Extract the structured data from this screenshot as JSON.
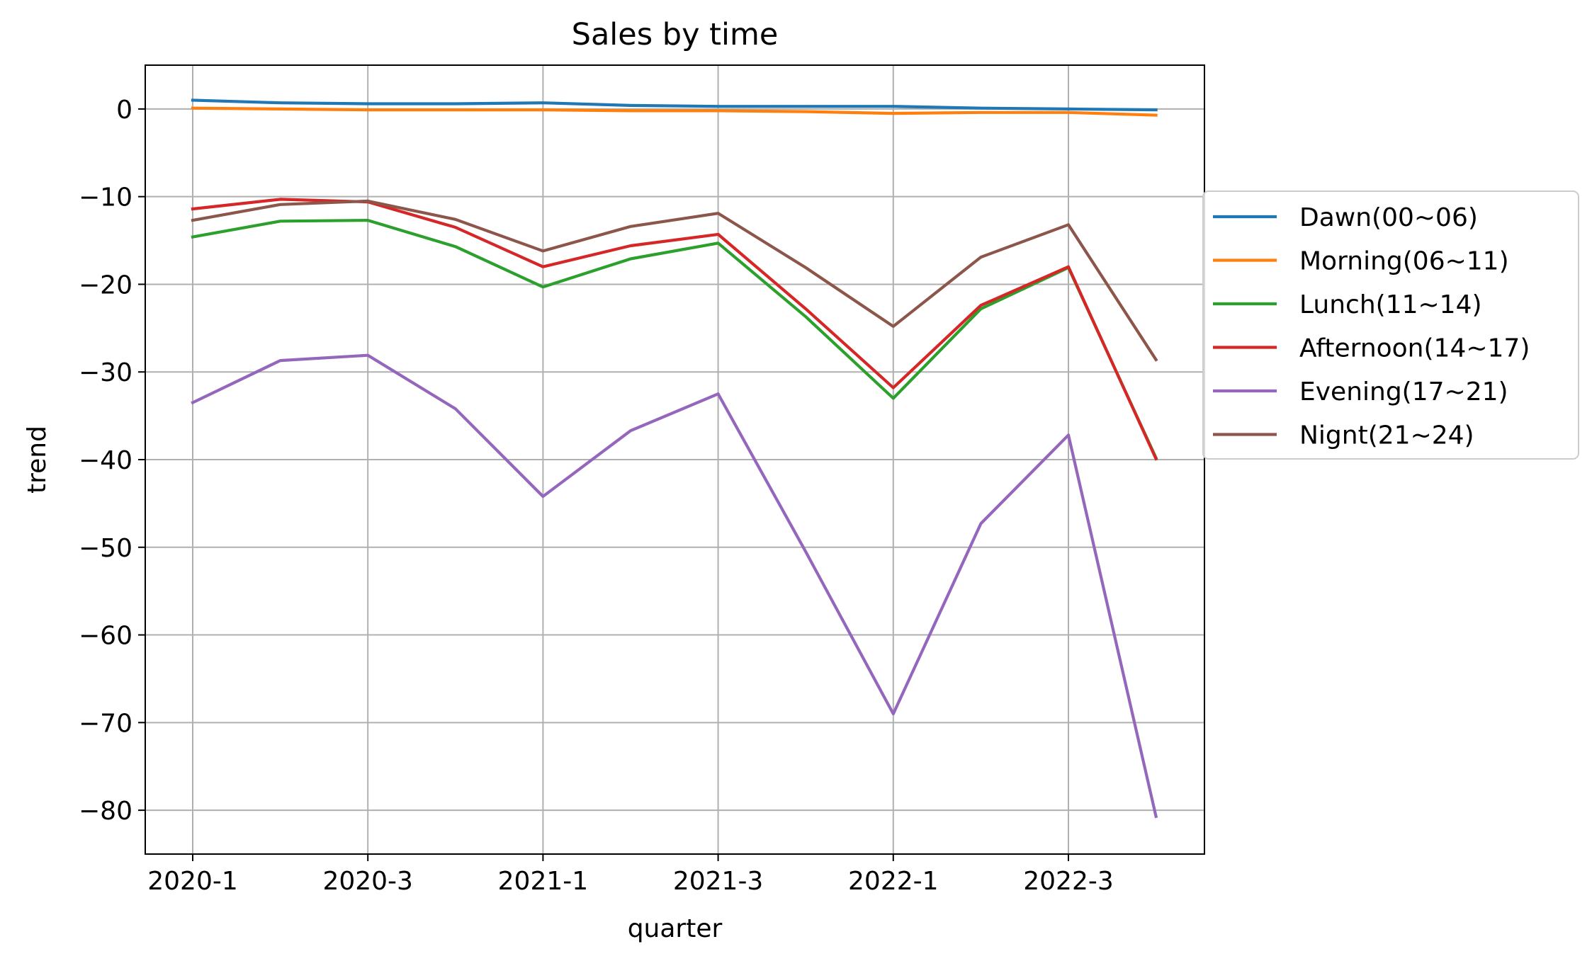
{
  "chart_data": {
    "type": "line",
    "title": "Sales by time",
    "xlabel": "quarter",
    "ylabel": "trend",
    "x": [
      "2020-1",
      "2020-2",
      "2020-3",
      "2020-4",
      "2021-1",
      "2021-2",
      "2021-3",
      "2021-4",
      "2022-1",
      "2022-2",
      "2022-3",
      "2022-4"
    ],
    "x_tick_labels": [
      "2020-1",
      "2020-3",
      "2021-1",
      "2021-3",
      "2022-1",
      "2022-3"
    ],
    "y_ticks": [
      0,
      -10,
      -20,
      -30,
      -40,
      -50,
      -60,
      -70,
      -80
    ],
    "y_tick_labels": [
      "0",
      "−10",
      "−20",
      "−30",
      "−40",
      "−50",
      "−60",
      "−70",
      "−80"
    ],
    "ylim": [
      -85,
      5
    ],
    "grid": true,
    "legend_position": "right, outside plot",
    "series": [
      {
        "name": "Dawn(00~06)",
        "color": "#1f77b4",
        "values": [
          1.0,
          0.7,
          0.6,
          0.6,
          0.7,
          0.4,
          0.3,
          0.3,
          0.3,
          0.1,
          0.0,
          -0.1
        ]
      },
      {
        "name": "Morning(06~11)",
        "color": "#ff7f0e",
        "values": [
          0.1,
          0.0,
          -0.1,
          -0.1,
          -0.1,
          -0.2,
          -0.2,
          -0.3,
          -0.5,
          -0.4,
          -0.4,
          -0.7
        ]
      },
      {
        "name": "Lunch(11~14)",
        "color": "#2ca02c",
        "values": [
          -14.6,
          -12.8,
          -12.7,
          -15.7,
          -20.3,
          -17.1,
          -15.3,
          -23.7,
          -33.0,
          -22.8,
          -18.1,
          -39.8
        ]
      },
      {
        "name": "Afternoon(14~17)",
        "color": "#d62728",
        "values": [
          -11.4,
          -10.3,
          -10.6,
          -13.5,
          -18.0,
          -15.6,
          -14.3,
          -22.8,
          -31.8,
          -22.4,
          -18.0,
          -39.9
        ]
      },
      {
        "name": "Evening(17~21)",
        "color": "#9467bd",
        "values": [
          -33.5,
          -28.7,
          -28.1,
          -34.2,
          -44.2,
          -36.7,
          -32.5,
          -50.5,
          -69.0,
          -47.3,
          -37.2,
          -80.7
        ]
      },
      {
        "name": "Nignt(21~24)",
        "color": "#8c564b",
        "values": [
          -12.7,
          -10.9,
          -10.5,
          -12.6,
          -16.2,
          -13.4,
          -11.9,
          -18.1,
          -24.8,
          -16.9,
          -13.2,
          -28.6
        ]
      }
    ]
  }
}
